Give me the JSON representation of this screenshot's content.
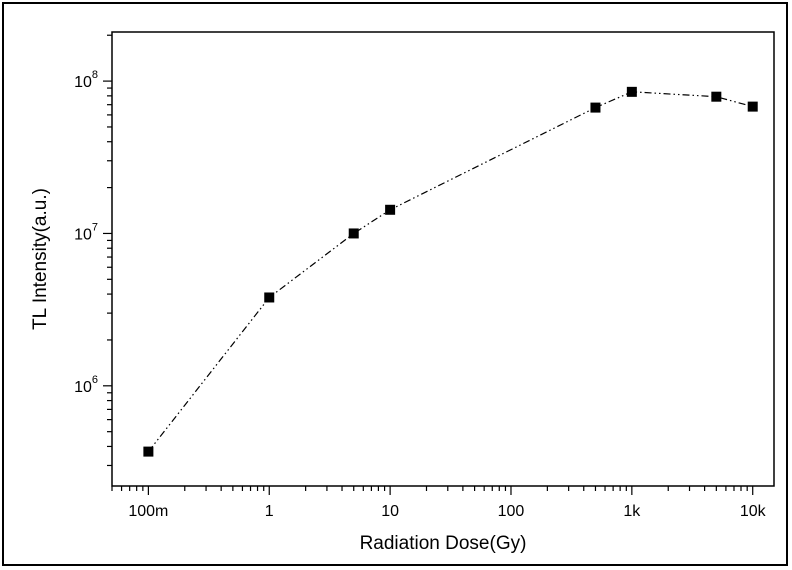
{
  "chart_data": {
    "type": "line",
    "title": "",
    "xlabel": "Radiation Dose(Gy)",
    "ylabel": "TL Intensity(a.u.)",
    "x_scale": "log",
    "y_scale": "log",
    "xlim": [
      0.05,
      15000
    ],
    "ylim": [
      220000,
      210000000
    ],
    "x_ticks": [
      {
        "value": 0.1,
        "label": "100m"
      },
      {
        "value": 1,
        "label": "1"
      },
      {
        "value": 10,
        "label": "10"
      },
      {
        "value": 100,
        "label": "100"
      },
      {
        "value": 1000,
        "label": "1k"
      },
      {
        "value": 10000,
        "label": "10k"
      }
    ],
    "y_ticks": [
      {
        "value": 1000000,
        "base": "10",
        "exp": "6"
      },
      {
        "value": 10000000,
        "base": "10",
        "exp": "7"
      },
      {
        "value": 100000000,
        "base": "10",
        "exp": "8"
      }
    ],
    "grid": false,
    "legend": "none",
    "series": [
      {
        "x": [
          0.1,
          1,
          5,
          10,
          500,
          1000,
          5000,
          10000
        ],
        "y": [
          370000,
          3800000,
          10000000,
          14300000,
          67000000,
          85000000,
          79000000,
          68000000
        ]
      }
    ],
    "line_style": "dash-dot-dot",
    "marker": "square",
    "color": "#000000"
  }
}
